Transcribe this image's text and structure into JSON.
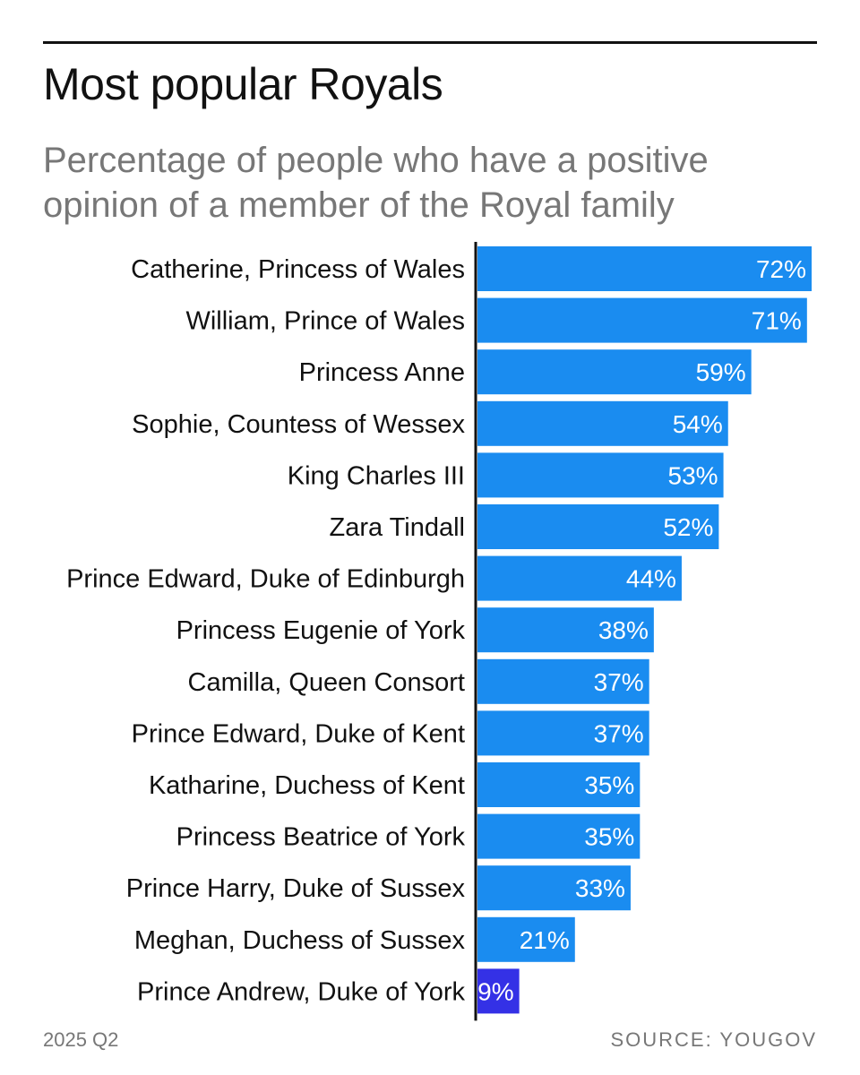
{
  "title": "Most popular Royals",
  "subtitle": "Percentage of people who have a positive opinion of a member of the Royal family",
  "footer": {
    "period": "2025 Q2",
    "source": "SOURCE: YOUGOV"
  },
  "colors": {
    "bar": "#1a8cf0",
    "highlight": "#3431e6",
    "axis": "#111111"
  },
  "chart_data": {
    "type": "bar",
    "orientation": "horizontal",
    "title": "Most popular Royals",
    "subtitle": "Percentage of people who have a positive opinion of a member of the Royal family",
    "unit": "%",
    "categories": [
      "Catherine, Princess of Wales",
      "William, Prince of Wales",
      "Princess Anne",
      "Sophie, Countess of Wessex",
      "King Charles III",
      "Zara Tindall",
      "Prince Edward, Duke of Edinburgh",
      "Princess Eugenie of York",
      "Camilla, Queen Consort",
      "Prince Edward, Duke of Kent",
      "Katharine, Duchess of Kent",
      "Princess Beatrice of York",
      "Prince Harry, Duke of Sussex",
      "Meghan, Duchess of Sussex",
      "Prince Andrew, Duke of York"
    ],
    "values": [
      72,
      71,
      59,
      54,
      53,
      52,
      44,
      38,
      37,
      37,
      35,
      35,
      33,
      21,
      9
    ],
    "data_labels": [
      "72%",
      "71%",
      "59%",
      "54%",
      "53%",
      "52%",
      "44%",
      "38%",
      "37%",
      "37%",
      "35%",
      "35%",
      "33%",
      "21%",
      "9%"
    ],
    "highlighted": [
      "Prince Andrew, Duke of York"
    ],
    "xlim": [
      0,
      72
    ],
    "grid": false,
    "legend": "none"
  }
}
